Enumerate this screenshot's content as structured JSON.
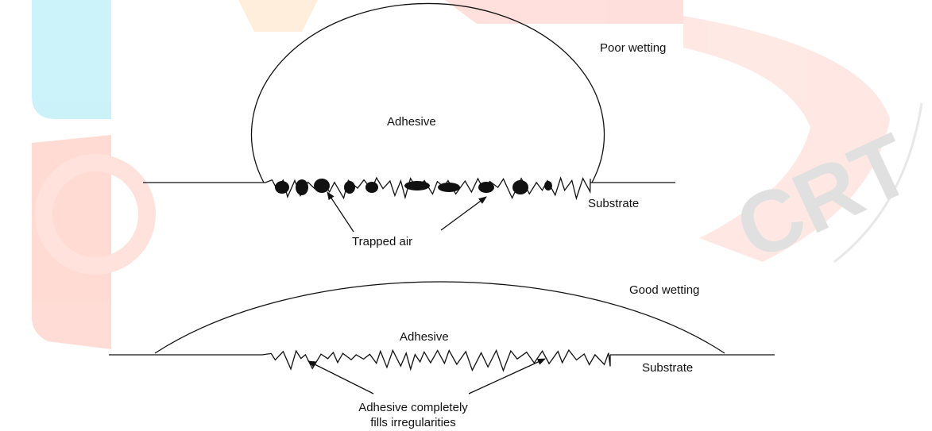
{
  "top": {
    "title": "Poor wetting",
    "adhesive": "Adhesive",
    "substrate": "Substrate",
    "callout": "Trapped air"
  },
  "bottom": {
    "title": "Good wetting",
    "adhesive": "Adhesive",
    "substrate": "Substrate",
    "callout": [
      "Adhesive completely",
      "fills irregularities"
    ]
  },
  "watermark": "CRT"
}
